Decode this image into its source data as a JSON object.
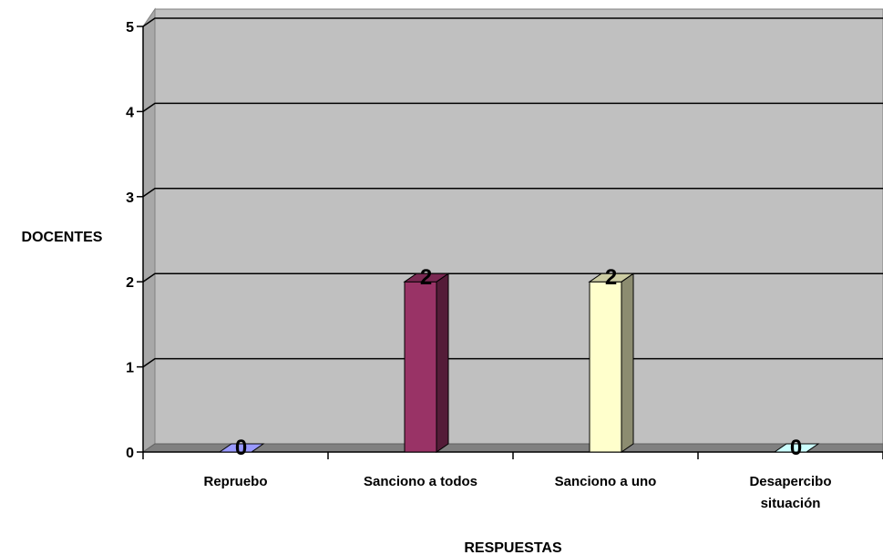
{
  "chart_data": {
    "type": "bar",
    "categories": [
      [
        "Repruebo"
      ],
      [
        "Sanciono a todos"
      ],
      [
        "Sanciono a uno"
      ],
      [
        "Desapercibo",
        "situación"
      ]
    ],
    "values": [
      0,
      2,
      2,
      0
    ],
    "data_labels": [
      "0",
      "2",
      "2",
      "0"
    ],
    "title": "",
    "xlabel": "RESPUESTAS",
    "ylabel": "DOCENTES",
    "ylim": [
      0,
      5
    ],
    "yticks": [
      "0",
      "1",
      "2",
      "3",
      "4",
      "5"
    ],
    "grid": true,
    "three_d": true,
    "colors": {
      "wall": "#c0c0c0",
      "floor": "#808080",
      "bars": [
        "#9999ff",
        "#993366",
        "#ffffcc",
        "#ccffff"
      ]
    }
  }
}
